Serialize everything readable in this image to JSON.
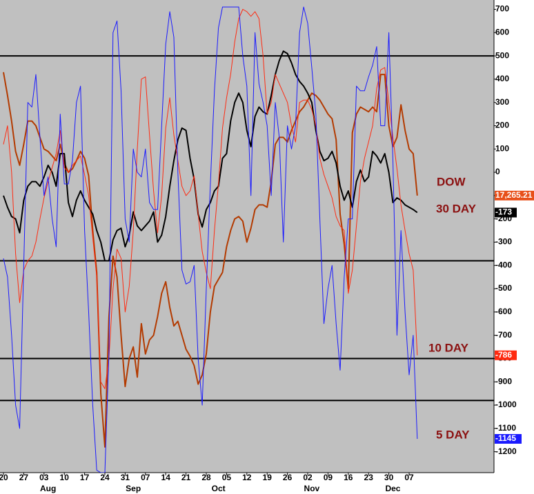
{
  "chart_data": {
    "type": "line",
    "categories": [
      "20",
      null,
      null,
      null,
      null,
      "27",
      null,
      null,
      null,
      null,
      "03",
      null,
      null,
      null,
      null,
      "10",
      null,
      null,
      null,
      null,
      "17",
      null,
      null,
      null,
      null,
      "24",
      null,
      null,
      null,
      null,
      "31",
      null,
      null,
      null,
      null,
      "07",
      null,
      null,
      null,
      null,
      "14",
      null,
      null,
      null,
      null,
      "21",
      null,
      null,
      null,
      null,
      "28",
      null,
      null,
      null,
      null,
      "05",
      null,
      null,
      null,
      null,
      "12",
      null,
      null,
      null,
      null,
      "19",
      null,
      null,
      null,
      null,
      "26",
      null,
      null,
      null,
      null,
      "02",
      null,
      null,
      null,
      null,
      "09",
      null,
      null,
      null,
      null,
      "16",
      null,
      null,
      null,
      null,
      "23",
      null,
      null,
      null,
      null,
      "30",
      null,
      null,
      null,
      null,
      "07",
      null,
      null
    ],
    "months": [
      null,
      null,
      null,
      null,
      null,
      null,
      null,
      null,
      null,
      null,
      null,
      "Aug",
      null,
      null,
      null,
      null,
      null,
      null,
      null,
      null,
      null,
      null,
      null,
      null,
      null,
      null,
      null,
      null,
      null,
      null,
      null,
      null,
      "Sep",
      null,
      null,
      null,
      null,
      null,
      null,
      null,
      null,
      null,
      null,
      null,
      null,
      null,
      null,
      null,
      null,
      null,
      null,
      null,
      null,
      "Oct",
      null,
      null,
      null,
      null,
      null,
      null,
      null,
      null,
      null,
      null,
      null,
      null,
      null,
      null,
      null,
      null,
      null,
      null,
      null,
      null,
      null,
      null,
      "Nov",
      null,
      null,
      null,
      null,
      null,
      null,
      null,
      null,
      null,
      null,
      null,
      null,
      null,
      null,
      null,
      null,
      null,
      null,
      null,
      "Dec",
      null,
      null,
      null,
      null,
      null,
      null
    ],
    "series": [
      {
        "name": "DOW",
        "color": "#b33a00",
        "width": 2,
        "end_label": "17,265.21",
        "end_color": "#e8501a",
        "values": [
          430,
          330,
          220,
          90,
          30,
          120,
          220,
          220,
          200,
          150,
          100,
          90,
          70,
          50,
          120,
          40,
          0,
          15,
          50,
          90,
          60,
          -15,
          -250,
          -430,
          -950,
          -1180,
          -620,
          -360,
          -450,
          -700,
          -920,
          -800,
          -750,
          -880,
          -650,
          -780,
          -720,
          -700,
          -620,
          -520,
          -470,
          -580,
          -660,
          -640,
          -700,
          -760,
          -790,
          -830,
          -910,
          -870,
          -780,
          -600,
          -490,
          -460,
          -430,
          -320,
          -250,
          -200,
          -190,
          -210,
          -300,
          -240,
          -160,
          -140,
          -140,
          -150,
          -40,
          120,
          150,
          150,
          130,
          180,
          220,
          260,
          280,
          310,
          340,
          330,
          310,
          280,
          250,
          230,
          140,
          -180,
          -310,
          -500,
          170,
          250,
          280,
          270,
          260,
          280,
          260,
          420,
          420,
          200,
          110,
          150,
          290,
          180,
          100,
          80,
          -100
        ]
      },
      {
        "name": "30 DAY",
        "color": "#000000",
        "width": 2,
        "end_label": "-173",
        "end_color": "#000000",
        "values": [
          -100,
          -150,
          -190,
          -200,
          -260,
          -120,
          -60,
          -40,
          -40,
          -60,
          -20,
          30,
          0,
          -60,
          80,
          80,
          -130,
          -190,
          -120,
          -80,
          -120,
          -150,
          -180,
          -250,
          -300,
          -380,
          -380,
          -290,
          -250,
          -240,
          -320,
          -270,
          -170,
          -230,
          -250,
          -230,
          -210,
          -170,
          -300,
          -270,
          -190,
          -60,
          50,
          140,
          190,
          180,
          60,
          -30,
          -180,
          -235,
          -160,
          -130,
          -80,
          -60,
          60,
          80,
          220,
          300,
          340,
          300,
          180,
          110,
          240,
          280,
          260,
          250,
          330,
          420,
          480,
          520,
          510,
          470,
          420,
          390,
          370,
          340,
          300,
          180,
          90,
          50,
          60,
          90,
          40,
          -60,
          -120,
          -80,
          -150,
          -40,
          10,
          -40,
          -20,
          90,
          70,
          40,
          80,
          0,
          -130,
          -110,
          -120,
          -140,
          -150,
          -160,
          -173
        ]
      },
      {
        "name": "10 DAY",
        "color": "#ff2a10",
        "width": 1,
        "end_label": "-786",
        "end_color": "#ff2a10",
        "values": [
          120,
          200,
          0,
          -350,
          -560,
          -420,
          -380,
          -360,
          -300,
          -200,
          -110,
          -40,
          20,
          80,
          180,
          20,
          0,
          30,
          50,
          70,
          -10,
          -100,
          -280,
          -450,
          -900,
          -930,
          -800,
          -500,
          -330,
          -370,
          -600,
          -490,
          -250,
          100,
          400,
          410,
          160,
          -80,
          -260,
          -100,
          190,
          320,
          160,
          50,
          -60,
          -100,
          -80,
          -15,
          -180,
          -340,
          -430,
          -500,
          -250,
          -50,
          190,
          320,
          420,
          560,
          660,
          700,
          690,
          670,
          690,
          660,
          500,
          250,
          300,
          420,
          380,
          340,
          300,
          200,
          130,
          300,
          310,
          310,
          270,
          200,
          60,
          -10,
          -60,
          -110,
          -190,
          -230,
          -250,
          -520,
          -420,
          -230,
          -40,
          60,
          130,
          200,
          360,
          440,
          450,
          300,
          150,
          15,
          -140,
          -250,
          -350,
          -420,
          -786
        ]
      },
      {
        "name": "5 DAY",
        "color": "#1a1aff",
        "width": 1,
        "end_label": "-1145",
        "end_color": "#1a1aff",
        "values": [
          -370,
          -450,
          -700,
          -1000,
          -1100,
          -400,
          300,
          280,
          420,
          150,
          -100,
          -20,
          -200,
          -320,
          250,
          -50,
          -50,
          50,
          300,
          370,
          -250,
          -600,
          -1000,
          -1280,
          -1290,
          -1290,
          -780,
          600,
          650,
          350,
          -200,
          -300,
          100,
          0,
          -20,
          100,
          -130,
          -160,
          -160,
          200,
          550,
          690,
          580,
          0,
          -420,
          -480,
          -470,
          -400,
          -800,
          -1000,
          -500,
          -50,
          350,
          620,
          710,
          710,
          710,
          710,
          710,
          500,
          370,
          -100,
          600,
          380,
          300,
          200,
          -100,
          300,
          150,
          -300,
          200,
          100,
          200,
          600,
          710,
          640,
          450,
          250,
          -200,
          -650,
          -500,
          -400,
          -650,
          -850,
          -450,
          -200,
          -200,
          370,
          350,
          350,
          410,
          460,
          540,
          200,
          200,
          600,
          50,
          -700,
          -250,
          -600,
          -870,
          -700,
          -1145
        ]
      }
    ],
    "hlines": [
      500,
      -380,
      -800,
      -980
    ],
    "ylim": [
      -1290,
      740
    ],
    "yticks": [
      700,
      600,
      500,
      400,
      300,
      200,
      100,
      0,
      -100,
      -200,
      -300,
      -400,
      -500,
      -600,
      -700,
      -800,
      -900,
      -1000,
      -1100,
      -1200
    ],
    "grid": false
  }
}
